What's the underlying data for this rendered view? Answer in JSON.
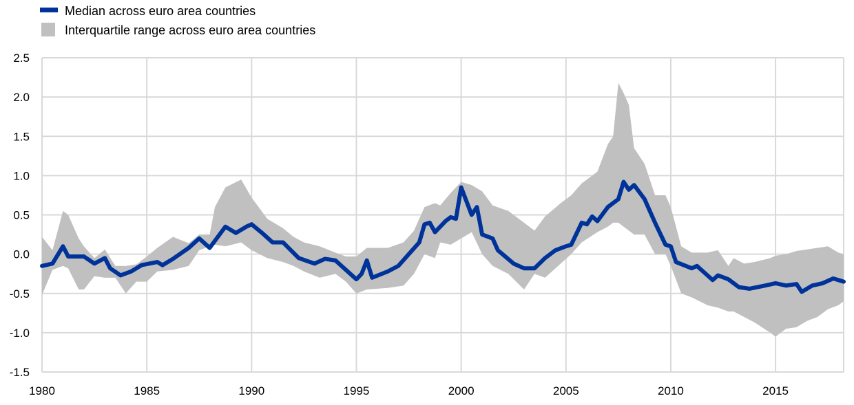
{
  "chart_data": {
    "type": "line",
    "title": "",
    "xlabel": "",
    "ylabel": "",
    "xlim": [
      1980,
      2018.25
    ],
    "ylim": [
      -1.5,
      2.5
    ],
    "grid": true,
    "legend_placement": "top-left",
    "x_ticks": [
      "1980",
      "1985",
      "1990",
      "1995",
      "2000",
      "2005",
      "2010",
      "2015"
    ],
    "y_ticks": [
      "2.5",
      "2.0",
      "1.5",
      "1.0",
      "0.5",
      "0.0",
      "-0.5",
      "-1.0",
      "-1.5"
    ],
    "colors": {
      "median": "#003399",
      "band": "#c0c0c0",
      "grid": "#d9d9d9"
    },
    "legend": [
      {
        "label": "Median across euro area countries"
      },
      {
        "label": "Interquartile range across euro area countries"
      }
    ],
    "median": {
      "name": "Median across euro area countries",
      "points": [
        [
          1980.0,
          -0.15
        ],
        [
          1980.5,
          -0.12
        ],
        [
          1981.0,
          0.1
        ],
        [
          1981.25,
          -0.03
        ],
        [
          1982.0,
          -0.03
        ],
        [
          1982.5,
          -0.12
        ],
        [
          1983.0,
          -0.05
        ],
        [
          1983.25,
          -0.18
        ],
        [
          1983.75,
          -0.27
        ],
        [
          1984.25,
          -0.22
        ],
        [
          1984.75,
          -0.14
        ],
        [
          1985.5,
          -0.1
        ],
        [
          1985.75,
          -0.14
        ],
        [
          1986.25,
          -0.06
        ],
        [
          1987.0,
          0.08
        ],
        [
          1987.5,
          0.2
        ],
        [
          1988.0,
          0.08
        ],
        [
          1988.75,
          0.35
        ],
        [
          1989.25,
          0.27
        ],
        [
          1989.75,
          0.35
        ],
        [
          1990.0,
          0.38
        ],
        [
          1990.5,
          0.27
        ],
        [
          1991.0,
          0.15
        ],
        [
          1991.5,
          0.15
        ],
        [
          1992.25,
          -0.05
        ],
        [
          1993.0,
          -0.12
        ],
        [
          1993.5,
          -0.06
        ],
        [
          1994.0,
          -0.08
        ],
        [
          1994.5,
          -0.2
        ],
        [
          1995.0,
          -0.32
        ],
        [
          1995.25,
          -0.25
        ],
        [
          1995.5,
          -0.08
        ],
        [
          1995.75,
          -0.3
        ],
        [
          1996.5,
          -0.22
        ],
        [
          1997.0,
          -0.15
        ],
        [
          1997.5,
          0.0
        ],
        [
          1998.0,
          0.15
        ],
        [
          1998.25,
          0.38
        ],
        [
          1998.5,
          0.4
        ],
        [
          1998.75,
          0.28
        ],
        [
          1999.25,
          0.42
        ],
        [
          1999.5,
          0.47
        ],
        [
          1999.75,
          0.45
        ],
        [
          2000.0,
          0.85
        ],
        [
          2000.5,
          0.5
        ],
        [
          2000.75,
          0.6
        ],
        [
          2001.0,
          0.25
        ],
        [
          2001.5,
          0.2
        ],
        [
          2001.75,
          0.05
        ],
        [
          2002.5,
          -0.12
        ],
        [
          2003.0,
          -0.18
        ],
        [
          2003.5,
          -0.18
        ],
        [
          2004.0,
          -0.05
        ],
        [
          2004.5,
          0.05
        ],
        [
          2005.0,
          0.1
        ],
        [
          2005.25,
          0.12
        ],
        [
          2005.75,
          0.4
        ],
        [
          2006.0,
          0.38
        ],
        [
          2006.25,
          0.48
        ],
        [
          2006.5,
          0.42
        ],
        [
          2007.0,
          0.6
        ],
        [
          2007.5,
          0.7
        ],
        [
          2007.75,
          0.92
        ],
        [
          2008.0,
          0.82
        ],
        [
          2008.25,
          0.88
        ],
        [
          2008.75,
          0.7
        ],
        [
          2009.25,
          0.4
        ],
        [
          2009.75,
          0.12
        ],
        [
          2010.0,
          0.1
        ],
        [
          2010.25,
          -0.1
        ],
        [
          2011.0,
          -0.18
        ],
        [
          2011.25,
          -0.15
        ],
        [
          2012.0,
          -0.33
        ],
        [
          2012.25,
          -0.27
        ],
        [
          2012.75,
          -0.32
        ],
        [
          2013.25,
          -0.42
        ],
        [
          2013.75,
          -0.44
        ],
        [
          2014.5,
          -0.4
        ],
        [
          2015.0,
          -0.37
        ],
        [
          2015.5,
          -0.4
        ],
        [
          2016.0,
          -0.38
        ],
        [
          2016.25,
          -0.48
        ],
        [
          2016.75,
          -0.4
        ],
        [
          2017.25,
          -0.37
        ],
        [
          2017.75,
          -0.31
        ],
        [
          2018.25,
          -0.35
        ]
      ]
    },
    "interquartile_range": {
      "name": "Interquartile range across euro area countries",
      "points_x_q1_q3": [
        [
          1980.0,
          -0.52,
          0.22
        ],
        [
          1980.5,
          -0.2,
          0.05
        ],
        [
          1981.0,
          -0.15,
          0.55
        ],
        [
          1981.25,
          -0.18,
          0.5
        ],
        [
          1981.75,
          -0.45,
          0.2
        ],
        [
          1982.0,
          -0.45,
          0.1
        ],
        [
          1982.5,
          -0.28,
          -0.05
        ],
        [
          1983.0,
          -0.3,
          0.06
        ],
        [
          1983.5,
          -0.3,
          -0.15
        ],
        [
          1984.0,
          -0.5,
          -0.15
        ],
        [
          1984.5,
          -0.35,
          -0.13
        ],
        [
          1985.0,
          -0.35,
          -0.03
        ],
        [
          1985.5,
          -0.22,
          0.08
        ],
        [
          1986.25,
          -0.2,
          0.22
        ],
        [
          1987.0,
          -0.15,
          0.14
        ],
        [
          1987.5,
          0.05,
          0.25
        ],
        [
          1988.0,
          0.1,
          0.25
        ],
        [
          1988.25,
          0.12,
          0.6
        ],
        [
          1988.75,
          0.1,
          0.85
        ],
        [
          1989.5,
          0.15,
          0.95
        ],
        [
          1990.0,
          0.05,
          0.72
        ],
        [
          1990.75,
          -0.05,
          0.45
        ],
        [
          1991.5,
          -0.1,
          0.33
        ],
        [
          1992.0,
          -0.15,
          0.22
        ],
        [
          1992.5,
          -0.22,
          0.15
        ],
        [
          1993.25,
          -0.3,
          0.1
        ],
        [
          1994.0,
          -0.25,
          0.02
        ],
        [
          1994.5,
          -0.35,
          -0.03
        ],
        [
          1995.0,
          -0.5,
          -0.03
        ],
        [
          1995.5,
          -0.45,
          0.08
        ],
        [
          1996.5,
          -0.43,
          0.08
        ],
        [
          1997.25,
          -0.4,
          0.15
        ],
        [
          1997.75,
          -0.25,
          0.3
        ],
        [
          1998.25,
          0.0,
          0.6
        ],
        [
          1998.75,
          -0.05,
          0.65
        ],
        [
          1999.0,
          0.15,
          0.62
        ],
        [
          1999.5,
          0.12,
          0.78
        ],
        [
          2000.0,
          0.2,
          0.92
        ],
        [
          2000.5,
          0.28,
          0.88
        ],
        [
          2001.0,
          0.0,
          0.8
        ],
        [
          2001.5,
          -0.15,
          0.62
        ],
        [
          2002.25,
          -0.25,
          0.55
        ],
        [
          2003.0,
          -0.45,
          0.4
        ],
        [
          2003.5,
          -0.25,
          0.3
        ],
        [
          2004.0,
          -0.3,
          0.48
        ],
        [
          2004.75,
          -0.12,
          0.65
        ],
        [
          2005.25,
          0.0,
          0.75
        ],
        [
          2005.75,
          0.15,
          0.9
        ],
        [
          2006.5,
          0.28,
          1.05
        ],
        [
          2007.0,
          0.35,
          1.4
        ],
        [
          2007.25,
          0.4,
          1.5
        ],
        [
          2007.5,
          0.4,
          2.18
        ],
        [
          2007.75,
          0.35,
          2.05
        ],
        [
          2008.0,
          0.3,
          1.9
        ],
        [
          2008.25,
          0.25,
          1.35
        ],
        [
          2008.75,
          0.25,
          1.15
        ],
        [
          2009.25,
          0.0,
          0.75
        ],
        [
          2009.75,
          0.0,
          0.75
        ],
        [
          2010.0,
          -0.15,
          0.6
        ],
        [
          2010.5,
          -0.5,
          0.1
        ],
        [
          2011.0,
          -0.55,
          0.02
        ],
        [
          2011.75,
          -0.65,
          0.02
        ],
        [
          2012.25,
          -0.68,
          0.05
        ],
        [
          2012.75,
          -0.73,
          -0.15
        ],
        [
          2013.0,
          -0.73,
          -0.05
        ],
        [
          2013.5,
          -0.8,
          -0.12
        ],
        [
          2014.0,
          -0.87,
          -0.1
        ],
        [
          2014.75,
          -1.0,
          -0.05
        ],
        [
          2015.0,
          -1.05,
          -0.02
        ],
        [
          2015.5,
          -0.95,
          0.0
        ],
        [
          2016.0,
          -0.93,
          0.04
        ],
        [
          2016.5,
          -0.85,
          0.06
        ],
        [
          2017.0,
          -0.8,
          0.08
        ],
        [
          2017.5,
          -0.7,
          0.1
        ],
        [
          2018.0,
          -0.65,
          0.02
        ],
        [
          2018.25,
          -0.6,
          0.0
        ]
      ]
    }
  }
}
